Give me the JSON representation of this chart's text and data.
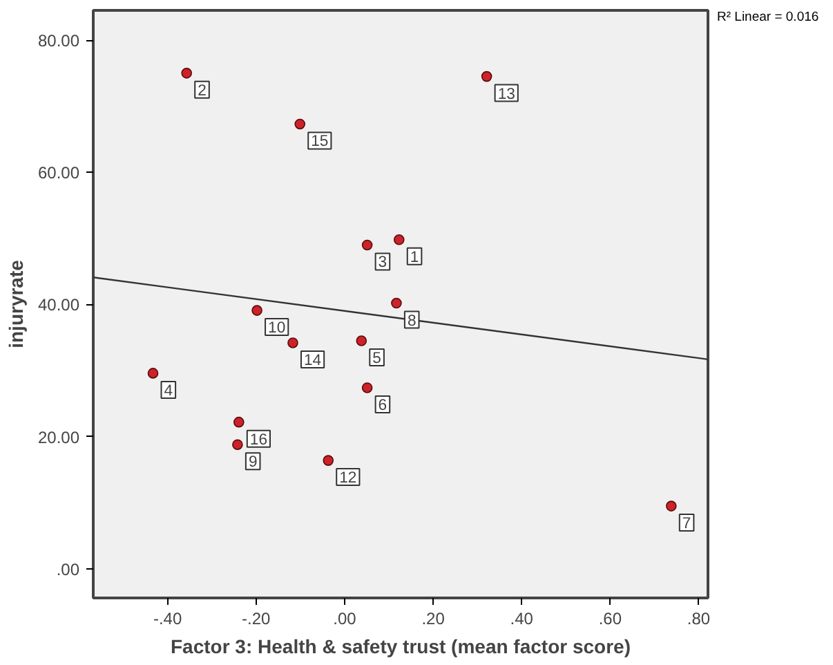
{
  "chart_data": {
    "type": "scatter",
    "xlabel": "Factor 3: Health & safety trust (mean factor score)",
    "ylabel": "injuryrate",
    "xlim": [
      -0.568,
      0.821
    ],
    "ylim": [
      -4.4,
      84.5
    ],
    "xticks": [
      {
        "value": -0.4,
        "label": "-.40"
      },
      {
        "value": -0.2,
        "label": "-.20"
      },
      {
        "value": 0,
        "label": ".00"
      },
      {
        "value": 0.2,
        "label": ".20"
      },
      {
        "value": 0.4,
        "label": ".40"
      },
      {
        "value": 0.6,
        "label": ".60"
      },
      {
        "value": 0.8,
        "label": ".80"
      }
    ],
    "yticks": [
      {
        "value": 0,
        "label": ".00"
      },
      {
        "value": 20,
        "label": "20.00"
      },
      {
        "value": 40,
        "label": "40.00"
      },
      {
        "value": 60,
        "label": "60.00"
      },
      {
        "value": 80,
        "label": "80.00"
      }
    ],
    "grid": false,
    "marker": "circle",
    "series": [
      {
        "color": "#cc2229",
        "x": [
          0.123,
          -0.357,
          0.051,
          -0.433,
          0.038,
          0.051,
          0.738,
          0.117,
          -0.242,
          -0.198,
          -0.037,
          0.321,
          -0.117,
          -0.101,
          -0.239
        ],
        "values": [
          49.8,
          75.0,
          49.0,
          29.6,
          34.5,
          27.4,
          9.5,
          40.2,
          18.8,
          39.1,
          16.4,
          74.5,
          34.2,
          67.3,
          22.2
        ]
      },
      {
        "type": "line",
        "color": "#333333",
        "marker": "none",
        "x": [
          -0.568,
          0.821
        ],
        "values": [
          44.1,
          31.7
        ]
      }
    ],
    "annotations": [
      {
        "text": "1",
        "x": 0.123,
        "y": 49.8
      },
      {
        "text": "2",
        "x": -0.357,
        "y": 75.0
      },
      {
        "text": "3",
        "x": 0.051,
        "y": 49.0
      },
      {
        "text": "4",
        "x": -0.433,
        "y": 29.6
      },
      {
        "text": "5",
        "x": 0.038,
        "y": 34.5
      },
      {
        "text": "6",
        "x": 0.051,
        "y": 27.4
      },
      {
        "text": "7",
        "x": 0.738,
        "y": 9.5
      },
      {
        "text": "8",
        "x": 0.117,
        "y": 40.2
      },
      {
        "text": "9",
        "x": -0.242,
        "y": 18.8
      },
      {
        "text": "10",
        "x": -0.198,
        "y": 39.1
      },
      {
        "text": "12",
        "x": -0.037,
        "y": 16.4
      },
      {
        "text": "13",
        "x": 0.321,
        "y": 74.5
      },
      {
        "text": "14",
        "x": -0.117,
        "y": 34.2
      },
      {
        "text": "15",
        "x": -0.101,
        "y": 67.3
      },
      {
        "text": "16",
        "x": -0.239,
        "y": 22.2
      },
      "R² Linear = 0.016"
    ]
  }
}
